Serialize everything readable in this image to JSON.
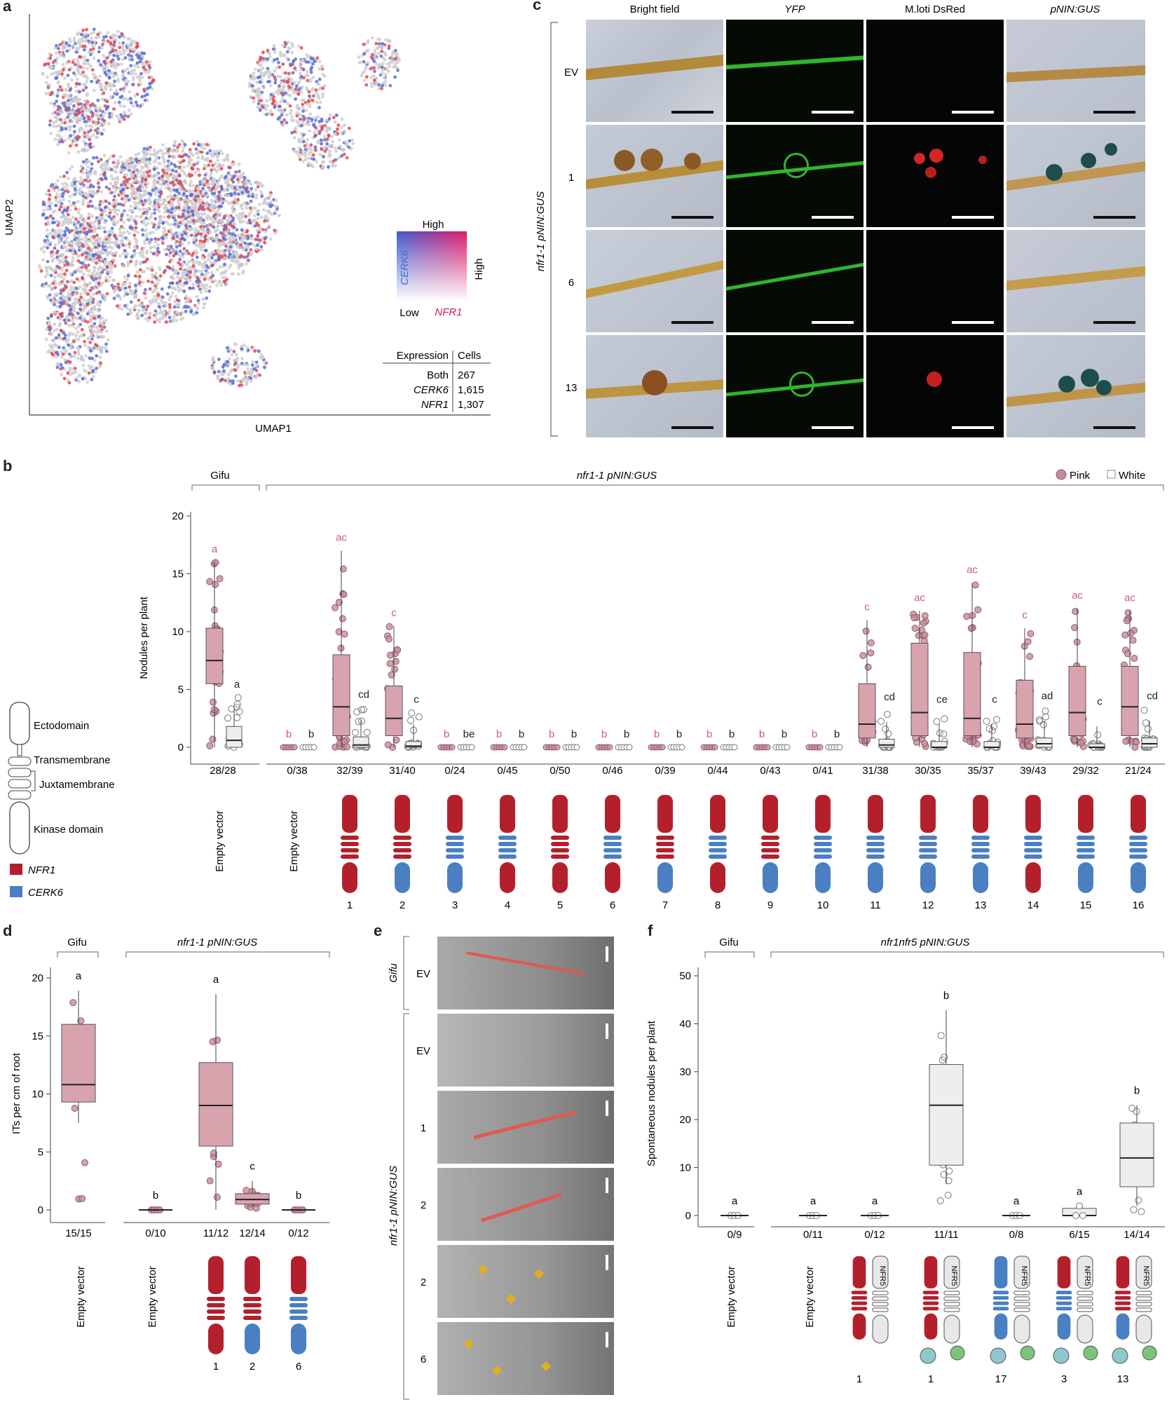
{
  "panels": {
    "a": "a",
    "b": "b",
    "c": "c",
    "d": "d",
    "e": "e",
    "f": "f"
  },
  "colors": {
    "nfr1": "#b3202c",
    "cerk6": "#4a7fc1",
    "pink": "#c98b98",
    "pink_fill": "#d9a3ae",
    "white_fill": "#eeeeee",
    "sig_pink": "#c85d75",
    "nfr5_fill": "#e8e8e8",
    "teal": "#8fc7cf",
    "green": "#7cc47a"
  },
  "panel_a": {
    "xlabel": "UMAP1",
    "ylabel": "UMAP2",
    "legend": {
      "high": "High",
      "low": "Low",
      "cerk6": "CERK6",
      "nfr1": "NFR1",
      "high_x": "High"
    },
    "table": {
      "col1": "Expression",
      "col2": "Cells",
      "rows": [
        [
          "Both",
          "267"
        ],
        [
          "CERK6",
          "1,615"
        ],
        [
          "NFR1",
          "1,307"
        ]
      ]
    }
  },
  "panel_c": {
    "columns": [
      "Bright field",
      "YFP",
      "M.loti DsRed",
      "pNIN:GUS"
    ],
    "row_labels": [
      "EV",
      "1",
      "6",
      "13"
    ],
    "side_label": "nfr1-1 pNIN:GUS"
  },
  "panel_b": {
    "ylabel": "Nodules per plant",
    "yticks": [
      "0",
      "5",
      "10",
      "15",
      "20"
    ],
    "group_gifu": "Gifu",
    "group_mut": "nfr1-1 pNIN:GUS",
    "legend": {
      "pink": "Pink",
      "white": "White"
    },
    "schematic": {
      "ecto": "Ectodomain",
      "tm": "Transmembrane",
      "jm": "Juxtamembrane",
      "kin": "Kinase domain",
      "nfr1": "NFR1",
      "cerk6": "CERK6"
    },
    "ev_label": "Empty vector",
    "chart_data": {
      "type": "box",
      "ylabel": "Nodules per plant",
      "ylim": [
        0,
        20
      ],
      "categories": [
        "Empty vector (Gifu)",
        "Empty vector",
        "1",
        "2",
        "3",
        "4",
        "5",
        "6",
        "7",
        "8",
        "9",
        "10",
        "11",
        "12",
        "13",
        "14",
        "15",
        "16"
      ],
      "pink_median": [
        7.5,
        0,
        3.5,
        2.5,
        0,
        0,
        0,
        0,
        0,
        0,
        0,
        0,
        2,
        3,
        2.5,
        2,
        3,
        3.5
      ],
      "pink_q1": [
        5.5,
        0,
        1,
        1,
        0,
        0,
        0,
        0,
        0,
        0,
        0,
        0,
        0.8,
        1,
        1,
        0.8,
        1,
        1
      ],
      "pink_q3": [
        10.3,
        0,
        8,
        5.3,
        0,
        0,
        0,
        0,
        0,
        0,
        0,
        0,
        5.5,
        9,
        8.2,
        5.8,
        7,
        7
      ],
      "pink_max": [
        16,
        0,
        17,
        10.5,
        0,
        0,
        0,
        0,
        0,
        0,
        0,
        0,
        11,
        11.8,
        14.2,
        10.3,
        12,
        11.8
      ],
      "white_median": [
        0.6,
        0,
        0.2,
        0.1,
        0,
        0,
        0,
        0,
        0,
        0,
        0,
        0,
        0.2,
        0,
        0,
        0.3,
        0,
        0.3
      ],
      "white_q3": [
        1.8,
        0,
        0.9,
        0.5,
        0,
        0,
        0,
        0,
        0,
        0,
        0,
        0,
        0.7,
        0.5,
        0.5,
        0.8,
        0.3,
        0.8
      ],
      "letters_pink": [
        "a",
        "b",
        "ac",
        "c",
        "b",
        "b",
        "b",
        "b",
        "b",
        "b",
        "b",
        "b",
        "c",
        "ac",
        "ac",
        "c",
        "ac",
        "ac"
      ],
      "letters_white": [
        "a",
        "b",
        "cd",
        "c",
        "be",
        "b",
        "b",
        "b",
        "b",
        "b",
        "b",
        "b",
        "cd",
        "ce",
        "c",
        "ad",
        "c",
        "cd"
      ],
      "ratios": [
        "28/28",
        "0/38",
        "32/39",
        "31/40",
        "0/24",
        "0/45",
        "0/50",
        "0/46",
        "0/39",
        "0/44",
        "0/43",
        "0/41",
        "31/38",
        "30/35",
        "35/37",
        "39/43",
        "29/32",
        "21/24"
      ]
    },
    "constructs": [
      "1",
      "2",
      "3",
      "4",
      "5",
      "6",
      "7",
      "8",
      "9",
      "10",
      "11",
      "12",
      "13",
      "14",
      "15",
      "16"
    ]
  },
  "panel_d": {
    "ylabel": "ITs per cm of root",
    "yticks": [
      "0",
      "5",
      "10",
      "15",
      "20"
    ],
    "group_gifu": "Gifu",
    "group_mut": "nfr1-1 pNIN:GUS",
    "ev_label": "Empty vector",
    "chart_data": {
      "type": "box",
      "ylabel": "ITs per cm of root",
      "ylim": [
        0,
        20
      ],
      "categories": [
        "Empty vector (Gifu)",
        "Empty vector",
        "1",
        "2",
        "6"
      ],
      "median": [
        10.8,
        0,
        9,
        0.9,
        0
      ],
      "q1": [
        9.3,
        0,
        5.5,
        0.5,
        0
      ],
      "q3": [
        16,
        0,
        12.7,
        1.4,
        0
      ],
      "min": [
        7.5,
        0,
        0,
        0.3,
        0
      ],
      "max": [
        18.9,
        0,
        18.6,
        2.5,
        0
      ],
      "letters": [
        "a",
        "b",
        "a",
        "c",
        "b"
      ],
      "ratios": [
        "15/15",
        "0/10",
        "11/12",
        "12/14",
        "0/12"
      ]
    },
    "constructs": [
      "1",
      "2",
      "6"
    ]
  },
  "panel_e": {
    "gifu": "Gifu",
    "mut": "nfr1-1 pNIN:GUS",
    "rows": [
      "EV",
      "EV",
      "1",
      "2",
      "2",
      "6"
    ]
  },
  "panel_f": {
    "ylabel": "Spontaneous nodules per plant",
    "yticks": [
      "0",
      "10",
      "20",
      "30",
      "40",
      "50"
    ],
    "group_gifu": "Gifu",
    "group_mut": "nfr1nfr5 pNIN:GUS",
    "ev_label": "Empty vector",
    "nfr5": "NFR5",
    "chart_data": {
      "type": "box",
      "ylabel": "Spontaneous nodules per plant",
      "ylim": [
        0,
        50
      ],
      "categories": [
        "Empty vector (Gifu)",
        "Empty vector",
        "1",
        "1*",
        "17",
        "3",
        "13"
      ],
      "median": [
        0,
        0,
        0,
        23,
        0,
        0,
        12
      ],
      "q1": [
        0,
        0,
        0,
        10.5,
        0,
        0,
        6
      ],
      "q3": [
        0,
        0,
        0,
        31.5,
        0,
        1.5,
        19.3
      ],
      "max": [
        0,
        0,
        0,
        42.8,
        0,
        2,
        23
      ],
      "letters": [
        "a",
        "a",
        "a",
        "b",
        "a",
        "a",
        "b"
      ],
      "ratios": [
        "0/9",
        "0/11",
        "0/12",
        "11/11",
        "0/8",
        "6/15",
        "14/14"
      ]
    },
    "constructs": [
      "1",
      "1",
      "17",
      "3",
      "13"
    ]
  }
}
